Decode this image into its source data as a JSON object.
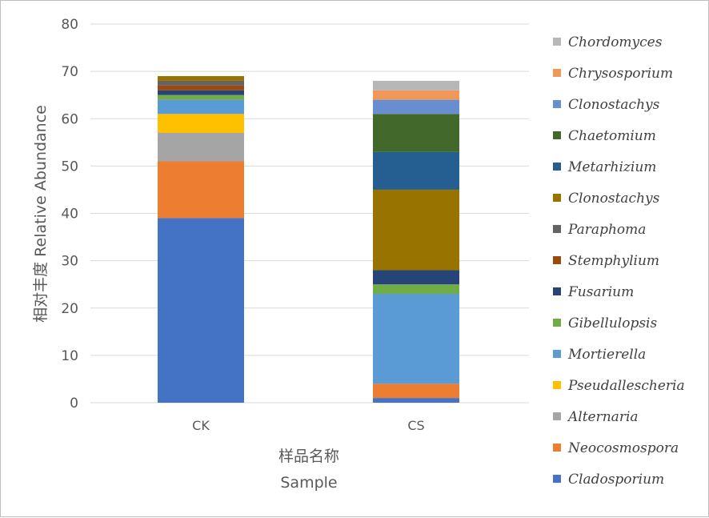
{
  "chart_data": {
    "type": "bar",
    "stacked": true,
    "title": "",
    "xlabel": "样品名称",
    "xlabel2": "Sample",
    "ylabel": "相对丰度 Relative Abundance",
    "ylim": [
      0,
      80
    ],
    "yticks": [
      0,
      10,
      20,
      30,
      40,
      50,
      60,
      70,
      80
    ],
    "grid": true,
    "legend_position": "right",
    "categories": [
      "CK",
      "CS"
    ],
    "series": [
      {
        "name": "Cladosporium",
        "color": "#4472c4",
        "values": [
          39,
          1
        ]
      },
      {
        "name": "Neocosmospora",
        "color": "#ed7d31",
        "values": [
          12,
          3
        ]
      },
      {
        "name": "Alternaria",
        "color": "#a5a5a5",
        "values": [
          6,
          0
        ]
      },
      {
        "name": "Pseudallescheria",
        "color": "#ffc000",
        "values": [
          4,
          0
        ]
      },
      {
        "name": "Mortierella",
        "color": "#5b9bd5",
        "values": [
          3,
          19
        ]
      },
      {
        "name": "Gibellulopsis",
        "color": "#70ad47",
        "values": [
          1,
          2
        ]
      },
      {
        "name": "Fusarium",
        "color": "#264478",
        "values": [
          1,
          3
        ]
      },
      {
        "name": "Stemphylium",
        "color": "#9e480e",
        "values": [
          1,
          0
        ]
      },
      {
        "name": "Paraphoma",
        "color": "#636363",
        "values": [
          1,
          0
        ]
      },
      {
        "name": "Clonostachys",
        "color": "#997300",
        "values": [
          1,
          17
        ]
      },
      {
        "name": "Metarhizium",
        "color": "#255e91",
        "values": [
          0,
          8
        ]
      },
      {
        "name": "Chaetomium",
        "color": "#43682b",
        "values": [
          0,
          8
        ]
      },
      {
        "name": "Clonostachys",
        "color": "#698ed0",
        "values": [
          0,
          3
        ]
      },
      {
        "name": "Chrysosporium",
        "color": "#f1975a",
        "values": [
          0,
          2
        ]
      },
      {
        "name": "Chordomyces",
        "color": "#b7b7b7",
        "values": [
          0,
          2
        ]
      }
    ]
  }
}
